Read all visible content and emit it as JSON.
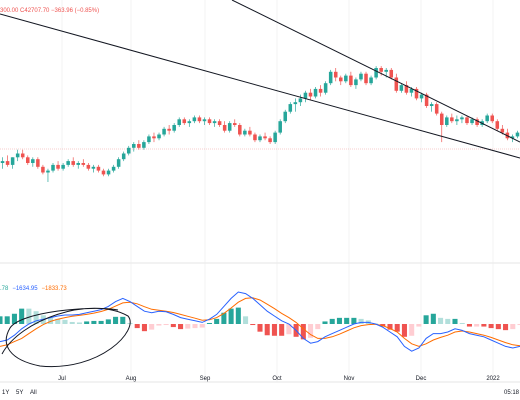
{
  "header": {
    "ohlc_text": "300.00 C42707.70 −363.96 (−0.85%)",
    "macd_text_a": ".78",
    "macd_text_b": "−1634.95",
    "macd_text_c": "−1833.73"
  },
  "bottom_bar": {
    "range_buttons": [
      "1Y",
      "5Y",
      "All"
    ],
    "time": "05:18"
  },
  "colors": {
    "up": "#26a69a",
    "down": "#ef5350",
    "macd_line": "#2962ff",
    "signal_line": "#ff6d00",
    "header_red": "#ef5350",
    "drawing": "#131722"
  },
  "chart_data": [
    {
      "type": "candlestick",
      "x_ticks": [
        "Jul",
        "Aug",
        "Sep",
        "Oct",
        "Nov",
        "Dec",
        "2022"
      ],
      "candles": [
        [
          0.3,
          0.33,
          0.27,
          0.31
        ],
        [
          0.31,
          0.34,
          0.28,
          0.29
        ],
        [
          0.29,
          0.33,
          0.27,
          0.33
        ],
        [
          0.33,
          0.37,
          0.31,
          0.35
        ],
        [
          0.35,
          0.37,
          0.32,
          0.33
        ],
        [
          0.33,
          0.34,
          0.29,
          0.3
        ],
        [
          0.3,
          0.33,
          0.28,
          0.32
        ],
        [
          0.32,
          0.33,
          0.27,
          0.28
        ],
        [
          0.28,
          0.29,
          0.24,
          0.25
        ],
        [
          0.25,
          0.27,
          0.2,
          0.26
        ],
        [
          0.26,
          0.3,
          0.25,
          0.29
        ],
        [
          0.29,
          0.31,
          0.26,
          0.27
        ],
        [
          0.27,
          0.3,
          0.26,
          0.29
        ],
        [
          0.29,
          0.32,
          0.28,
          0.31
        ],
        [
          0.31,
          0.33,
          0.28,
          0.29
        ],
        [
          0.29,
          0.31,
          0.27,
          0.3
        ],
        [
          0.3,
          0.32,
          0.28,
          0.29
        ],
        [
          0.29,
          0.3,
          0.26,
          0.27
        ],
        [
          0.27,
          0.29,
          0.25,
          0.28
        ],
        [
          0.28,
          0.29,
          0.25,
          0.26
        ],
        [
          0.26,
          0.27,
          0.23,
          0.24
        ],
        [
          0.24,
          0.27,
          0.23,
          0.26
        ],
        [
          0.26,
          0.29,
          0.25,
          0.28
        ],
        [
          0.28,
          0.33,
          0.27,
          0.32
        ],
        [
          0.32,
          0.36,
          0.31,
          0.35
        ],
        [
          0.35,
          0.39,
          0.34,
          0.38
        ],
        [
          0.38,
          0.41,
          0.36,
          0.4
        ],
        [
          0.4,
          0.42,
          0.37,
          0.38
        ],
        [
          0.38,
          0.42,
          0.37,
          0.41
        ],
        [
          0.41,
          0.45,
          0.4,
          0.44
        ],
        [
          0.44,
          0.46,
          0.41,
          0.43
        ],
        [
          0.43,
          0.46,
          0.42,
          0.45
        ],
        [
          0.45,
          0.49,
          0.44,
          0.48
        ],
        [
          0.48,
          0.5,
          0.45,
          0.47
        ],
        [
          0.47,
          0.51,
          0.46,
          0.5
        ],
        [
          0.5,
          0.54,
          0.49,
          0.53
        ],
        [
          0.53,
          0.54,
          0.5,
          0.51
        ],
        [
          0.51,
          0.53,
          0.49,
          0.52
        ],
        [
          0.52,
          0.55,
          0.51,
          0.54
        ],
        [
          0.54,
          0.55,
          0.51,
          0.52
        ],
        [
          0.52,
          0.54,
          0.5,
          0.53
        ],
        [
          0.53,
          0.54,
          0.5,
          0.51
        ],
        [
          0.51,
          0.53,
          0.49,
          0.52
        ],
        [
          0.52,
          0.53,
          0.49,
          0.5
        ],
        [
          0.5,
          0.52,
          0.46,
          0.47
        ],
        [
          0.47,
          0.52,
          0.46,
          0.51
        ],
        [
          0.51,
          0.53,
          0.49,
          0.5
        ],
        [
          0.5,
          0.51,
          0.44,
          0.45
        ],
        [
          0.45,
          0.48,
          0.44,
          0.47
        ],
        [
          0.47,
          0.49,
          0.44,
          0.45
        ],
        [
          0.45,
          0.46,
          0.41,
          0.42
        ],
        [
          0.42,
          0.45,
          0.41,
          0.44
        ],
        [
          0.44,
          0.46,
          0.42,
          0.43
        ],
        [
          0.43,
          0.44,
          0.4,
          0.41
        ],
        [
          0.41,
          0.47,
          0.4,
          0.46
        ],
        [
          0.46,
          0.53,
          0.45,
          0.52
        ],
        [
          0.52,
          0.58,
          0.51,
          0.57
        ],
        [
          0.57,
          0.62,
          0.56,
          0.61
        ],
        [
          0.61,
          0.64,
          0.57,
          0.62
        ],
        [
          0.62,
          0.66,
          0.6,
          0.64
        ],
        [
          0.64,
          0.68,
          0.62,
          0.67
        ],
        [
          0.67,
          0.69,
          0.63,
          0.65
        ],
        [
          0.65,
          0.7,
          0.64,
          0.69
        ],
        [
          0.69,
          0.71,
          0.65,
          0.67
        ],
        [
          0.67,
          0.73,
          0.66,
          0.72
        ],
        [
          0.72,
          0.79,
          0.71,
          0.78
        ],
        [
          0.78,
          0.8,
          0.73,
          0.75
        ],
        [
          0.75,
          0.76,
          0.71,
          0.73
        ],
        [
          0.73,
          0.77,
          0.72,
          0.76
        ],
        [
          0.76,
          0.78,
          0.7,
          0.71
        ],
        [
          0.71,
          0.75,
          0.69,
          0.74
        ],
        [
          0.74,
          0.78,
          0.73,
          0.77
        ],
        [
          0.77,
          0.78,
          0.71,
          0.72
        ],
        [
          0.72,
          0.76,
          0.71,
          0.75
        ],
        [
          0.75,
          0.81,
          0.74,
          0.8
        ],
        [
          0.8,
          0.81,
          0.76,
          0.78
        ],
        [
          0.78,
          0.8,
          0.75,
          0.79
        ],
        [
          0.79,
          0.8,
          0.74,
          0.75
        ],
        [
          0.75,
          0.77,
          0.67,
          0.68
        ],
        [
          0.68,
          0.72,
          0.67,
          0.71
        ],
        [
          0.71,
          0.73,
          0.66,
          0.67
        ],
        [
          0.67,
          0.7,
          0.65,
          0.69
        ],
        [
          0.69,
          0.7,
          0.63,
          0.64
        ],
        [
          0.64,
          0.67,
          0.62,
          0.66
        ],
        [
          0.66,
          0.67,
          0.59,
          0.6
        ],
        [
          0.6,
          0.62,
          0.57,
          0.61
        ],
        [
          0.61,
          0.62,
          0.55,
          0.56
        ],
        [
          0.56,
          0.57,
          0.41,
          0.5
        ],
        [
          0.5,
          0.55,
          0.49,
          0.54
        ],
        [
          0.54,
          0.56,
          0.51,
          0.52
        ],
        [
          0.52,
          0.55,
          0.5,
          0.53
        ],
        [
          0.53,
          0.55,
          0.51,
          0.54
        ],
        [
          0.54,
          0.55,
          0.5,
          0.51
        ],
        [
          0.51,
          0.54,
          0.5,
          0.53
        ],
        [
          0.53,
          0.54,
          0.49,
          0.5
        ],
        [
          0.5,
          0.53,
          0.49,
          0.52
        ],
        [
          0.52,
          0.56,
          0.51,
          0.55
        ],
        [
          0.55,
          0.56,
          0.51,
          0.52
        ],
        [
          0.52,
          0.53,
          0.47,
          0.48
        ],
        [
          0.48,
          0.5,
          0.45,
          0.46
        ],
        [
          0.46,
          0.48,
          0.42,
          0.43
        ],
        [
          0.43,
          0.45,
          0.41,
          0.44
        ],
        [
          0.44,
          0.47,
          0.43,
          0.46
        ]
      ]
    },
    {
      "type": "macd",
      "macd": [
        -0.55,
        -0.5,
        -0.35,
        -0.15,
        0.0,
        0.1,
        0.15,
        0.2,
        0.25,
        0.28,
        0.28,
        0.3,
        0.35,
        0.4,
        0.45,
        0.55,
        0.7,
        0.8,
        0.7,
        0.55,
        0.4,
        0.35,
        0.4,
        0.38,
        0.3,
        0.2,
        0.15,
        0.1,
        0.05,
        0.15,
        0.3,
        0.55,
        0.8,
        1.0,
        0.95,
        0.8,
        0.6,
        0.4,
        0.25,
        0.1,
        0.0,
        -0.2,
        -0.45,
        -0.6,
        -0.55,
        -0.4,
        -0.3,
        -0.2,
        -0.1,
        0.0,
        0.05,
        0.05,
        0.0,
        -0.1,
        -0.25,
        -0.4,
        -0.7,
        -0.85,
        -0.75,
        -0.45,
        -0.3,
        -0.3,
        -0.25,
        -0.15,
        -0.2,
        -0.3,
        -0.35,
        -0.4,
        -0.5,
        -0.6,
        -0.7,
        -0.75,
        -0.7
      ],
      "signal": [
        -0.7,
        -0.65,
        -0.55,
        -0.45,
        -0.3,
        -0.15,
        -0.02,
        0.08,
        0.15,
        0.2,
        0.24,
        0.27,
        0.3,
        0.34,
        0.39,
        0.46,
        0.56,
        0.66,
        0.68,
        0.63,
        0.54,
        0.46,
        0.43,
        0.4,
        0.36,
        0.3,
        0.24,
        0.18,
        0.12,
        0.13,
        0.2,
        0.33,
        0.5,
        0.68,
        0.8,
        0.82,
        0.75,
        0.62,
        0.48,
        0.33,
        0.2,
        0.05,
        -0.15,
        -0.33,
        -0.45,
        -0.45,
        -0.4,
        -0.32,
        -0.22,
        -0.12,
        -0.05,
        -0.02,
        -0.01,
        -0.05,
        -0.14,
        -0.25,
        -0.45,
        -0.62,
        -0.7,
        -0.62,
        -0.5,
        -0.42,
        -0.35,
        -0.25,
        -0.22,
        -0.25,
        -0.3,
        -0.35,
        -0.42,
        -0.5,
        -0.58,
        -0.65,
        -0.68
      ]
    }
  ]
}
